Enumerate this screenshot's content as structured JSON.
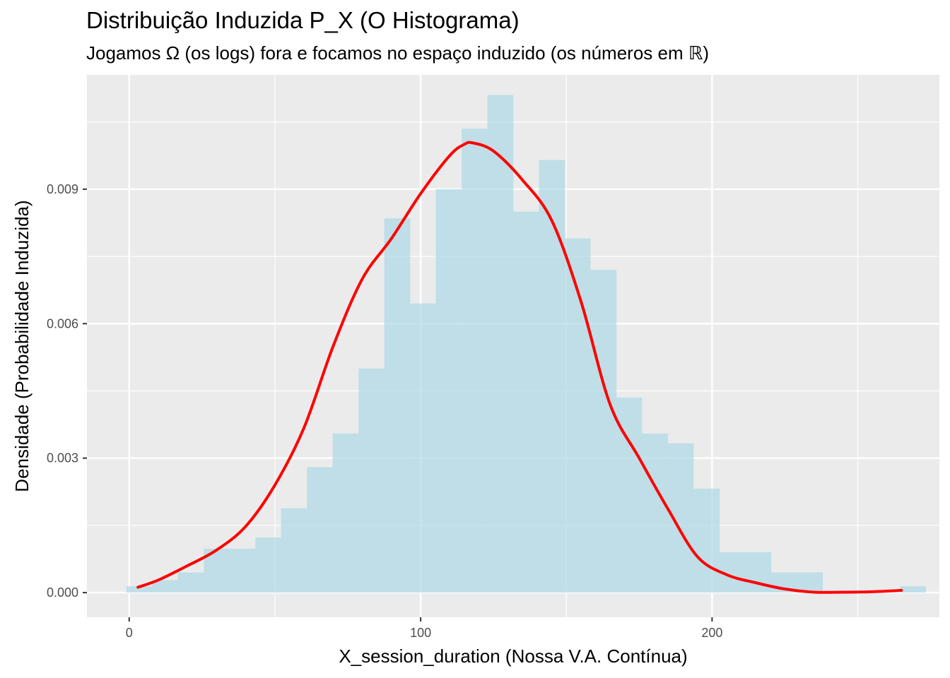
{
  "chart_data": {
    "type": "bar",
    "title": "Distribuição Induzida P_X (O Histograma)",
    "subtitle": "Jogamos Ω (os logs) fora e focamos no espaço induzido (os números em ℝ)",
    "xlabel": "X_session_duration (Nossa V.A. Contínua)",
    "ylabel": "Densidade (Probabilidade Induzida)",
    "xlim": [
      -14.5,
      278
    ],
    "ylim": [
      -0.00055,
      0.01155
    ],
    "x_ticks": [
      0,
      100,
      200
    ],
    "x_tick_labels": [
      "0",
      "100",
      "200"
    ],
    "y_ticks": [
      0,
      0.003,
      0.006,
      0.009
    ],
    "y_tick_labels": [
      "0.000",
      "0.003",
      "0.006",
      "0.009"
    ],
    "x_minor_ticks": [
      -50,
      50,
      150,
      250
    ],
    "y_minor_ticks": [
      0.0015,
      0.0045,
      0.0075,
      0.0105
    ],
    "grid": true,
    "histogram": {
      "color": "#add8e6",
      "opacity": 0.7,
      "bin_edges": [
        -1,
        7.9,
        16.7,
        25.6,
        34.4,
        43.3,
        52.1,
        61,
        69.8,
        78.7,
        87.5,
        96.4,
        105.2,
        114.1,
        122.9,
        131.8,
        140.6,
        149.5,
        158.3,
        167.2,
        176,
        184.9,
        193.7,
        202.6,
        211.4,
        220.3,
        229.1,
        238,
        246.8,
        255.7,
        264.5,
        273.4
      ],
      "density": [
        0.00014,
        0.00028,
        0.00045,
        0.00098,
        0.00098,
        0.00123,
        0.00188,
        0.0028,
        0.00355,
        0.005,
        0.00835,
        0.00645,
        0.009,
        0.01035,
        0.0111,
        0.0085,
        0.00965,
        0.0079,
        0.0072,
        0.00435,
        0.00355,
        0.00333,
        0.00232,
        0.0009,
        0.0009,
        0.00045,
        0.00045,
        0,
        0,
        0,
        0.00014
      ]
    },
    "density_curve": {
      "color": "#ff0000",
      "x": [
        3,
        10,
        20,
        30,
        40,
        50,
        60,
        70,
        80,
        90,
        100,
        110,
        115,
        118,
        125,
        135,
        145,
        155,
        165,
        175,
        185,
        195,
        205,
        215,
        225,
        235,
        245,
        255,
        265
      ],
      "y": [
        0.00012,
        0.00028,
        0.0006,
        0.00095,
        0.00148,
        0.0024,
        0.00368,
        0.0055,
        0.007,
        0.0079,
        0.0089,
        0.00975,
        0.01,
        0.01003,
        0.00985,
        0.0092,
        0.0083,
        0.0065,
        0.0042,
        0.003,
        0.00185,
        0.0008,
        0.0004,
        0.00022,
        8e-05,
        1e-05,
        1e-05,
        2e-05,
        5e-05
      ]
    }
  }
}
